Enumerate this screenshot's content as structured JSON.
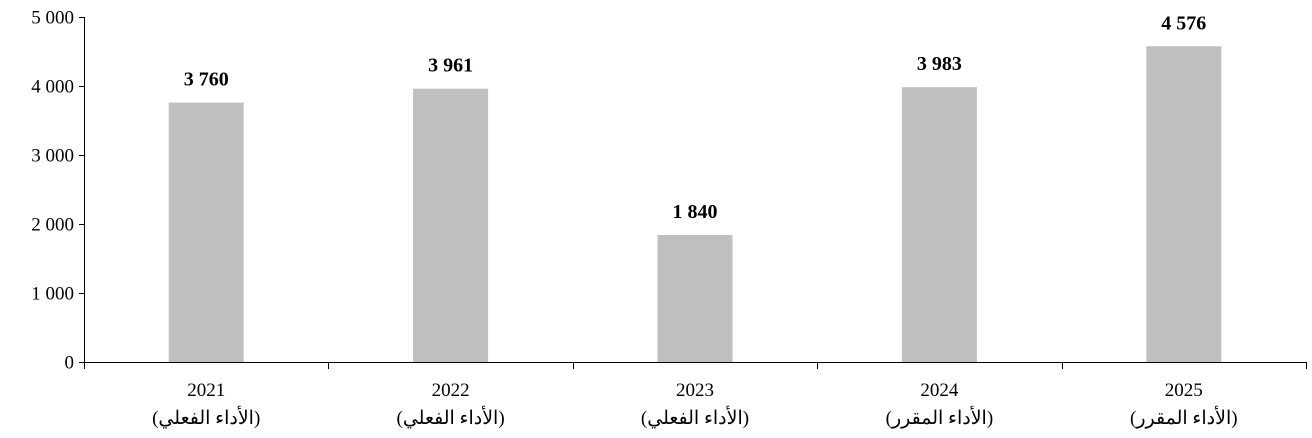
{
  "chart_data": {
    "type": "bar",
    "title": "",
    "xlabel": "",
    "ylabel": "",
    "categories": [
      {
        "year": "2021",
        "note": "(الأداء الفعلي)"
      },
      {
        "year": "2022",
        "note": "(الأداء الفعلي)"
      },
      {
        "year": "2023",
        "note": "(الأداء الفعلي)"
      },
      {
        "year": "2024",
        "note": "(الأداء المقرر)"
      },
      {
        "year": "2025",
        "note": "(الأداء المقرر)"
      }
    ],
    "values": [
      3760,
      3961,
      1840,
      3983,
      4576
    ],
    "value_labels": [
      "3 760",
      "3 961",
      "1 840",
      "3 983",
      "4 576"
    ],
    "ylim": [
      0,
      5000
    ],
    "yticks": [
      0,
      1000,
      2000,
      3000,
      4000,
      5000
    ],
    "ytick_labels": [
      "0",
      "1 000",
      "2 000",
      "3 000",
      "4 000",
      "5 000"
    ],
    "bar_color": "#bfbfbf",
    "grid": false,
    "legend": "none"
  }
}
